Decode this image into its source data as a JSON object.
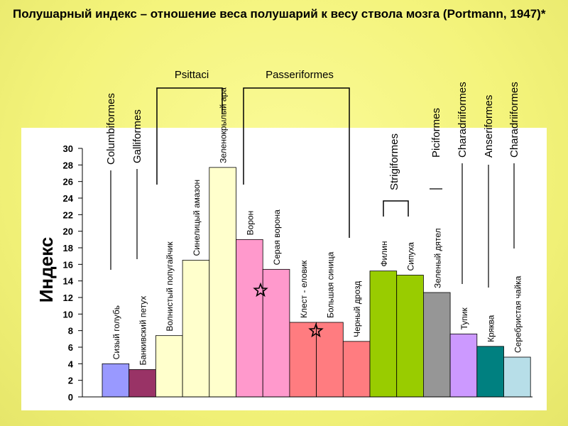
{
  "title": "Полушарный индекс – отношение веса полушарий к весу ствола мозга  (Portmann, 1947)*",
  "chart_data": {
    "type": "bar",
    "ylabel": "Индекс",
    "ylim": [
      0,
      30
    ],
    "yticks": [
      "0",
      "2",
      "4",
      "6",
      "8",
      "10",
      "12",
      "14",
      "16",
      "18",
      "20",
      "22",
      "24",
      "26",
      "28",
      "30"
    ],
    "categories": [
      "Сизый голубь",
      "Банкивский петух",
      "Волнистый попугайчик",
      "Синелицый амазон",
      "Зеленокрылый ара",
      "Ворон",
      "Серая ворона",
      "Клест - еловик",
      "Большая синица",
      "Черный дрозд",
      "Филин",
      "Сипуха",
      "Зеленый дятел",
      "Тупик",
      "Кряква",
      "Серебристая чайка"
    ],
    "values": [
      4.0,
      3.3,
      7.4,
      16.5,
      27.7,
      19.0,
      15.4,
      9.0,
      9.0,
      6.7,
      15.2,
      14.7,
      12.6,
      7.6,
      6.1,
      4.8
    ],
    "colors": [
      "#9999ff",
      "#993366",
      "#ffffcc",
      "#ffffcc",
      "#ffffcc",
      "#ff99cc",
      "#ff99cc",
      "#ff7c80",
      "#ff7c80",
      "#ff7c80",
      "#99cc00",
      "#99cc00",
      "#969696",
      "#cc99ff",
      "#008080",
      "#b7dee8"
    ],
    "order_labels": [
      "Columbiformes",
      "Galliformes",
      "Strigiformes",
      "Piciformes",
      "Charadriiformes",
      "Anseriformes",
      "Charadriiformes"
    ],
    "group_labels": [
      "Psittaci",
      "Passeriformes"
    ],
    "markers": [
      "star-icon",
      "star-icon"
    ]
  }
}
